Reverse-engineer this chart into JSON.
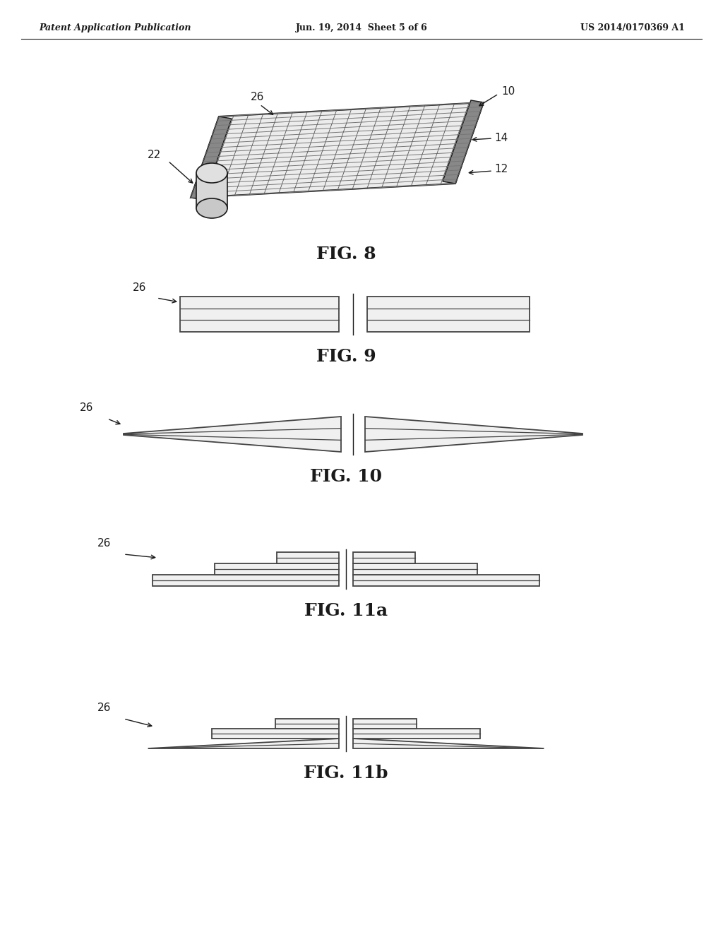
{
  "bg_color": "#ffffff",
  "header_left": "Patent Application Publication",
  "header_center": "Jun. 19, 2014  Sheet 5 of 6",
  "header_right": "US 2014/0170369 A1",
  "fig8_label": "FIG. 8",
  "fig9_label": "FIG. 9",
  "fig10_label": "FIG. 10",
  "fig11a_label": "FIG. 11a",
  "fig11b_label": "FIG. 11b",
  "line_color": "#1a1a1a",
  "fig_label_fontsize": 18,
  "label_fontsize": 11,
  "header_fontsize": 9,
  "panel_face": "#f0f0f0",
  "panel_line": "#444444",
  "dark_band": "#777777"
}
